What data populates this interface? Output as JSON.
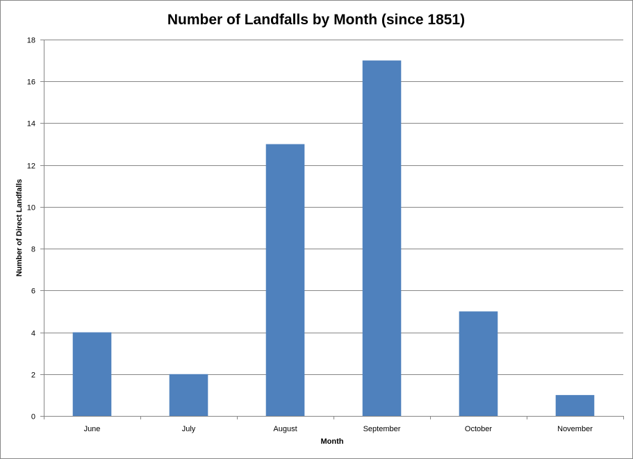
{
  "chart_data": {
    "type": "bar",
    "title": "Number of Landfalls by Month (since 1851)",
    "xlabel": "Month",
    "ylabel": "Number of Direct Landfalls",
    "categories": [
      "June",
      "July",
      "August",
      "September",
      "October",
      "November"
    ],
    "values": [
      4,
      2,
      13,
      17,
      5,
      1
    ],
    "ylim": [
      0,
      18
    ],
    "yticks": [
      0,
      2,
      4,
      6,
      8,
      10,
      12,
      14,
      16,
      18
    ],
    "grid": true,
    "legend": "none",
    "bar_color": "#4F81BD",
    "grid_color": "#868686"
  }
}
